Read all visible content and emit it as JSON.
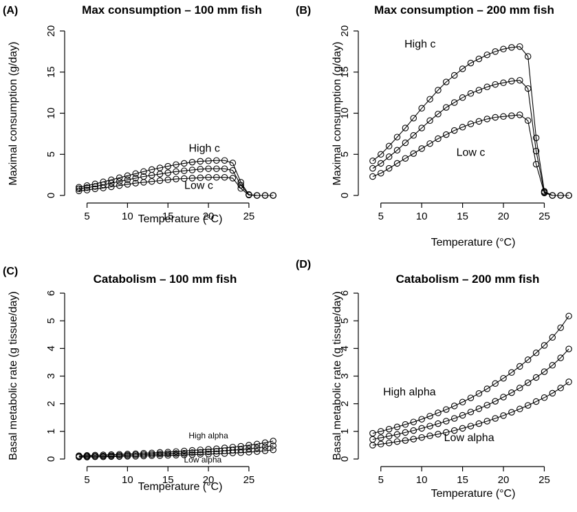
{
  "chart_data": [
    {
      "type": "line",
      "panel_label": "(A)",
      "title": "Max consumption – 100 mm fish",
      "xlabel": "Temperature (°C)",
      "ylabel": "Maximal consumption (g/day)",
      "xlim": [
        3,
        29
      ],
      "ylim": [
        0,
        20
      ],
      "xticks": [
        5,
        10,
        15,
        20,
        25
      ],
      "yticks": [
        0,
        5,
        10,
        15,
        20
      ],
      "grid": false,
      "x": [
        4,
        5,
        6,
        7,
        8,
        9,
        10,
        11,
        12,
        13,
        14,
        15,
        16,
        17,
        18,
        19,
        20,
        21,
        22,
        23,
        24,
        25,
        26,
        27,
        28
      ],
      "series": [
        {
          "values": [
            1.0,
            1.2,
            1.4,
            1.65,
            1.9,
            2.15,
            2.4,
            2.65,
            2.9,
            3.15,
            3.35,
            3.55,
            3.75,
            3.9,
            4.05,
            4.15,
            4.2,
            4.25,
            4.25,
            3.95,
            1.6,
            0.1,
            0.0,
            0.0,
            0.0
          ]
        },
        {
          "values": [
            0.8,
            0.95,
            1.1,
            1.3,
            1.5,
            1.7,
            1.9,
            2.1,
            2.3,
            2.45,
            2.6,
            2.75,
            2.9,
            3.0,
            3.1,
            3.2,
            3.25,
            3.25,
            3.25,
            3.05,
            1.25,
            0.1,
            0.0,
            0.0,
            0.0
          ]
        },
        {
          "values": [
            0.55,
            0.65,
            0.8,
            0.9,
            1.05,
            1.2,
            1.35,
            1.5,
            1.6,
            1.7,
            1.8,
            1.9,
            2.0,
            2.05,
            2.1,
            2.15,
            2.2,
            2.2,
            2.2,
            2.1,
            0.85,
            0.05,
            0.0,
            0.0,
            0.0
          ]
        }
      ],
      "annotations": [
        {
          "text": "High c",
          "x": 19.5,
          "y": 5.3
        },
        {
          "text": "Low c",
          "x": 18.8,
          "y": 0.8
        }
      ]
    },
    {
      "type": "line",
      "panel_label": "(B)",
      "title": "Max consumption – 200 mm fish",
      "xlabel": "Temperature (°C)",
      "ylabel": "Maximal consumption (g/day)",
      "xlim": [
        3,
        29
      ],
      "ylim": [
        0,
        20
      ],
      "xticks": [
        5,
        10,
        15,
        20,
        25
      ],
      "yticks": [
        0,
        5,
        10,
        15,
        20
      ],
      "grid": false,
      "x": [
        4,
        5,
        6,
        7,
        8,
        9,
        10,
        11,
        12,
        13,
        14,
        15,
        16,
        17,
        18,
        19,
        20,
        21,
        22,
        23,
        24,
        25,
        26,
        27,
        28
      ],
      "series": [
        {
          "values": [
            4.2,
            5.0,
            6.0,
            7.1,
            8.2,
            9.4,
            10.6,
            11.7,
            12.8,
            13.8,
            14.6,
            15.4,
            16.1,
            16.6,
            17.1,
            17.5,
            17.8,
            18.0,
            18.1,
            16.9,
            7.0,
            0.5,
            0.0,
            0.0,
            0.0
          ]
        },
        {
          "values": [
            3.3,
            3.9,
            4.7,
            5.5,
            6.4,
            7.3,
            8.2,
            9.1,
            9.9,
            10.7,
            11.3,
            11.9,
            12.4,
            12.8,
            13.2,
            13.5,
            13.7,
            13.9,
            14.0,
            13.0,
            5.4,
            0.4,
            0.0,
            0.0,
            0.0
          ]
        },
        {
          "values": [
            2.3,
            2.7,
            3.3,
            3.9,
            4.5,
            5.1,
            5.7,
            6.3,
            6.9,
            7.4,
            7.9,
            8.3,
            8.7,
            9.0,
            9.3,
            9.5,
            9.6,
            9.7,
            9.8,
            9.1,
            3.8,
            0.3,
            0.0,
            0.0,
            0.0
          ]
        }
      ],
      "annotations": [
        {
          "text": "High c",
          "x": 9.8,
          "y": 18.0
        },
        {
          "text": "Low c",
          "x": 16.0,
          "y": 4.8
        }
      ]
    },
    {
      "type": "line",
      "panel_label": "(C)",
      "title": "Catabolism – 100 mm fish",
      "xlabel": "Temperature (°C)",
      "ylabel": "Basal metabolic rate (g tissue/day)",
      "xlim": [
        3,
        29
      ],
      "ylim": [
        0,
        6
      ],
      "xticks": [
        5,
        10,
        15,
        20,
        25
      ],
      "yticks": [
        0,
        1,
        2,
        3,
        4,
        5,
        6
      ],
      "grid": false,
      "x": [
        4,
        5,
        6,
        7,
        8,
        9,
        10,
        11,
        12,
        13,
        14,
        15,
        16,
        17,
        18,
        19,
        20,
        21,
        22,
        23,
        24,
        25,
        26,
        27,
        28
      ],
      "series": [
        {
          "values": [
            0.12,
            0.13,
            0.14,
            0.15,
            0.16,
            0.17,
            0.18,
            0.19,
            0.21,
            0.22,
            0.24,
            0.25,
            0.27,
            0.29,
            0.31,
            0.33,
            0.35,
            0.37,
            0.4,
            0.43,
            0.46,
            0.5,
            0.54,
            0.59,
            0.65
          ]
        },
        {
          "values": [
            0.09,
            0.1,
            0.1,
            0.11,
            0.12,
            0.13,
            0.14,
            0.15,
            0.16,
            0.17,
            0.18,
            0.19,
            0.2,
            0.21,
            0.23,
            0.24,
            0.26,
            0.28,
            0.3,
            0.32,
            0.34,
            0.37,
            0.4,
            0.44,
            0.48
          ]
        },
        {
          "values": [
            0.07,
            0.07,
            0.08,
            0.08,
            0.09,
            0.09,
            0.1,
            0.1,
            0.11,
            0.12,
            0.12,
            0.13,
            0.14,
            0.15,
            0.16,
            0.17,
            0.18,
            0.19,
            0.2,
            0.22,
            0.23,
            0.25,
            0.27,
            0.3,
            0.33
          ]
        }
      ],
      "annotations": [
        {
          "text": "High alpha",
          "x": 20.0,
          "y": 0.75
        },
        {
          "text": "Low alpha",
          "x": 19.3,
          "y": -0.12
        }
      ]
    },
    {
      "type": "line",
      "panel_label": "(D)",
      "title": "Catabolism – 200 mm fish",
      "xlabel": "Temperature (°C)",
      "ylabel": "Basal metabolic rate (g tissue/day)",
      "xlim": [
        3,
        29
      ],
      "ylim": [
        0,
        6
      ],
      "xticks": [
        5,
        10,
        15,
        20,
        25
      ],
      "yticks": [
        0,
        1,
        2,
        3,
        4,
        5,
        6
      ],
      "grid": false,
      "x": [
        4,
        5,
        6,
        7,
        8,
        9,
        10,
        11,
        12,
        13,
        14,
        15,
        16,
        17,
        18,
        19,
        20,
        21,
        22,
        23,
        24,
        25,
        26,
        27,
        28
      ],
      "series": [
        {
          "values": [
            0.93,
            1.0,
            1.08,
            1.16,
            1.25,
            1.34,
            1.44,
            1.55,
            1.67,
            1.79,
            1.92,
            2.06,
            2.21,
            2.37,
            2.54,
            2.73,
            2.92,
            3.13,
            3.35,
            3.59,
            3.84,
            4.11,
            4.4,
            4.75,
            5.17
          ]
        },
        {
          "values": [
            0.71,
            0.77,
            0.83,
            0.89,
            0.96,
            1.03,
            1.11,
            1.19,
            1.28,
            1.37,
            1.47,
            1.58,
            1.7,
            1.82,
            1.95,
            2.09,
            2.24,
            2.4,
            2.57,
            2.76,
            2.95,
            3.16,
            3.39,
            3.66,
            3.98
          ]
        },
        {
          "values": [
            0.5,
            0.54,
            0.58,
            0.63,
            0.67,
            0.72,
            0.78,
            0.84,
            0.9,
            0.96,
            1.03,
            1.11,
            1.19,
            1.28,
            1.37,
            1.47,
            1.57,
            1.69,
            1.81,
            1.94,
            2.08,
            2.22,
            2.38,
            2.57,
            2.79
          ]
        }
      ],
      "annotations": [
        {
          "text": "High alpha",
          "x": 8.5,
          "y": 2.3
        },
        {
          "text": "Low alpha",
          "x": 15.8,
          "y": 0.65
        }
      ]
    }
  ]
}
